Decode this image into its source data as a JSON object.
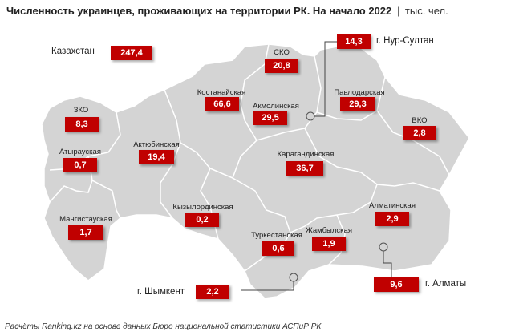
{
  "header": {
    "title": "Численность украинцев, проживающих на территории РК. На начало 2022",
    "separator": "|",
    "unit": "тыс. чел."
  },
  "footer": {
    "source": "Расчёты Ranking.kz на основе данных Бюро национальной статистики АСПиР РК"
  },
  "colors": {
    "value_box": "#c00000",
    "map_fill": "#d4d4d4",
    "region_border": "#ffffff"
  },
  "chart_data": {
    "type": "table",
    "total": {
      "label": "Казахстан",
      "value": "247,4"
    },
    "regions": [
      {
        "name": "СКО",
        "value": "20,8"
      },
      {
        "name": "г. Нур-Султан",
        "value": "14,3"
      },
      {
        "name": "Костанайская",
        "value": "66,6"
      },
      {
        "name": "Акмолинская",
        "value": "29,5"
      },
      {
        "name": "Павлодарская",
        "value": "29,3"
      },
      {
        "name": "ЗКО",
        "value": "8,3"
      },
      {
        "name": "ВКО",
        "value": "2,8"
      },
      {
        "name": "Атырауская",
        "value": "0,7"
      },
      {
        "name": "Актюбинская",
        "value": "19,4"
      },
      {
        "name": "Карагандинская",
        "value": "36,7"
      },
      {
        "name": "Кызылординская",
        "value": "0,2"
      },
      {
        "name": "Алматинская",
        "value": "2,9"
      },
      {
        "name": "Мангистауская",
        "value": "1,7"
      },
      {
        "name": "Туркестанская",
        "value": "0,6"
      },
      {
        "name": "Жамбылская",
        "value": "1,9"
      },
      {
        "name": "г. Шымкент",
        "value": "2,2"
      },
      {
        "name": "г. Алматы",
        "value": "9,6"
      }
    ]
  }
}
